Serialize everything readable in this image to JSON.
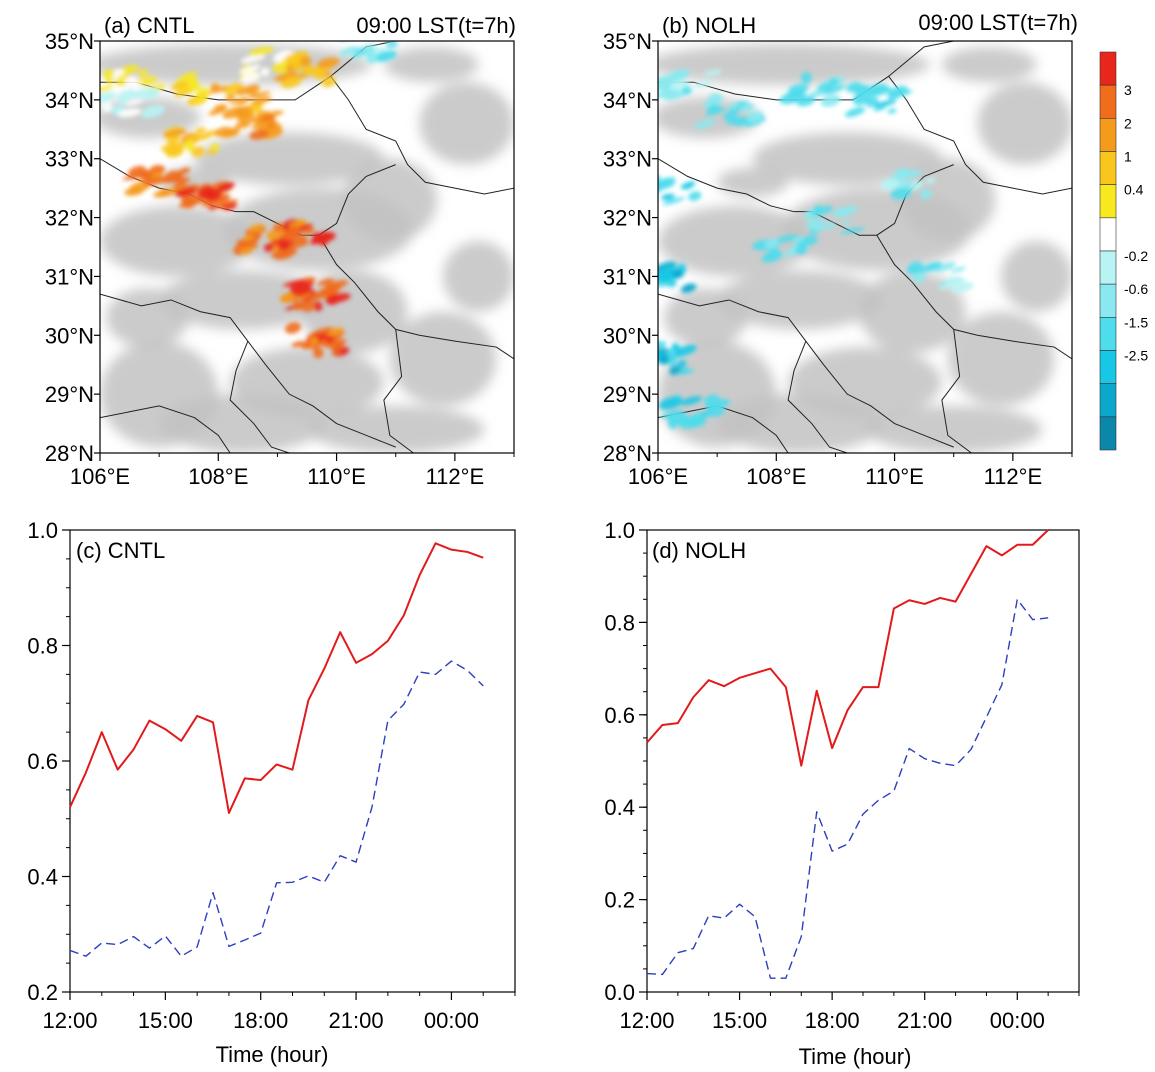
{
  "chart_data": [
    {
      "panel": "a",
      "type": "heatmap",
      "title": "(a) CNTL",
      "subtitle": "09:00 LST(t=7h)",
      "x_ticks": [
        "106°E",
        "108°E",
        "110°E",
        "112°E"
      ],
      "y_ticks": [
        "35°N",
        "34°N",
        "33°N",
        "32°N",
        "31°N",
        "30°N",
        "29°N",
        "28°N"
      ],
      "xlim": [
        106,
        113
      ],
      "ylim": [
        28,
        35
      ],
      "colorbar_ticks": [
        "3",
        "2",
        "1",
        "0.4",
        "-0.2",
        "-0.6",
        "-1.5",
        "-2.5"
      ],
      "colorbar_colors": [
        "#e8261c",
        "#f06d1c",
        "#f59b1c",
        "#f9c61d",
        "#f7e81f",
        "#ffffff",
        "#b8f4f4",
        "#8ae9f0",
        "#4fdcec",
        "#17c8e6",
        "#0aa9cc",
        "#0a87a9"
      ],
      "terrain_color": "#c8c8c8",
      "features": [
        {
          "lon": 106.5,
          "lat": 34.3,
          "value": 0.6
        },
        {
          "lon": 107.3,
          "lat": 34.2,
          "value": 0.8
        },
        {
          "lon": 108.3,
          "lat": 34.0,
          "value": 1.5
        },
        {
          "lon": 108.8,
          "lat": 34.6,
          "value": 0.5
        },
        {
          "lon": 109.5,
          "lat": 34.5,
          "value": 1.2
        },
        {
          "lon": 110.5,
          "lat": 34.9,
          "value": -0.6
        },
        {
          "lon": 107.6,
          "lat": 33.3,
          "value": 1.0
        },
        {
          "lon": 108.5,
          "lat": 33.6,
          "value": 2.0
        },
        {
          "lon": 107.0,
          "lat": 32.6,
          "value": 2.5
        },
        {
          "lon": 107.8,
          "lat": 32.3,
          "value": 3.0
        },
        {
          "lon": 108.8,
          "lat": 31.6,
          "value": 3.0
        },
        {
          "lon": 109.4,
          "lat": 31.7,
          "value": 3.0
        },
        {
          "lon": 109.6,
          "lat": 30.7,
          "value": 3.0
        },
        {
          "lon": 109.7,
          "lat": 29.9,
          "value": 3.0
        },
        {
          "lon": 106.5,
          "lat": 33.9,
          "value": -0.3
        }
      ]
    },
    {
      "panel": "b",
      "type": "heatmap",
      "title": "(b) NOLH",
      "subtitle": "09:00 LST(t=7h)",
      "x_ticks": [
        "106°E",
        "108°E",
        "110°E",
        "112°E"
      ],
      "y_ticks": [
        "35°N",
        "34°N",
        "33°N",
        "32°N",
        "31°N",
        "30°N",
        "29°N",
        "28°N"
      ],
      "xlim": [
        106,
        113
      ],
      "ylim": [
        28,
        35
      ],
      "features": [
        {
          "lon": 106.5,
          "lat": 34.3,
          "value": -0.6
        },
        {
          "lon": 107.2,
          "lat": 33.8,
          "value": -0.8
        },
        {
          "lon": 108.6,
          "lat": 34.2,
          "value": -0.8
        },
        {
          "lon": 109.7,
          "lat": 34.0,
          "value": -1.0
        },
        {
          "lon": 106.2,
          "lat": 32.5,
          "value": -1.0
        },
        {
          "lon": 106.1,
          "lat": 31.0,
          "value": -1.5
        },
        {
          "lon": 106.1,
          "lat": 29.6,
          "value": -1.5
        },
        {
          "lon": 106.6,
          "lat": 28.7,
          "value": -1.0
        },
        {
          "lon": 108.1,
          "lat": 31.5,
          "value": -0.8
        },
        {
          "lon": 109.0,
          "lat": 32.0,
          "value": -0.6
        },
        {
          "lon": 110.3,
          "lat": 32.6,
          "value": -0.6
        },
        {
          "lon": 110.7,
          "lat": 31.0,
          "value": -0.6
        }
      ]
    },
    {
      "panel": "c",
      "type": "line",
      "title": "(c) CNTL",
      "xlabel": "Time (hour)",
      "ylabel": "",
      "x_tick_labels": [
        "12:00",
        "15:00",
        "18:00",
        "21:00",
        "00:00"
      ],
      "x_tick_values": [
        12,
        15,
        18,
        21,
        24
      ],
      "y_tick_labels": [
        "0.2",
        "0.4",
        "0.6",
        "0.8",
        "1.0"
      ],
      "xlim": [
        12,
        26
      ],
      "ylim": [
        0.2,
        1.0
      ],
      "x": [
        12,
        12.5,
        13,
        13.5,
        14,
        14.5,
        15,
        15.5,
        16,
        16.5,
        17,
        17.5,
        18,
        18.5,
        19,
        19.5,
        20,
        20.5,
        21,
        21.5,
        22,
        22.5,
        23,
        23.5,
        24,
        24.5,
        25
      ],
      "series": [
        {
          "style": "solid",
          "color": "#e31a1c",
          "values": [
            0.52,
            0.58,
            0.65,
            0.585,
            0.62,
            0.67,
            0.655,
            0.635,
            0.678,
            0.667,
            0.51,
            0.57,
            0.567,
            0.594,
            0.585,
            0.705,
            0.76,
            0.823,
            0.77,
            0.785,
            0.808,
            0.852,
            0.922,
            0.977,
            0.966,
            0.962,
            0.952
          ]
        },
        {
          "style": "dashed",
          "color": "#2b3fbf",
          "values": [
            0.272,
            0.262,
            0.285,
            0.282,
            0.296,
            0.276,
            0.297,
            0.262,
            0.278,
            0.372,
            0.279,
            0.29,
            0.302,
            0.389,
            0.39,
            0.401,
            0.39,
            0.436,
            0.425,
            0.52,
            0.67,
            0.698,
            0.754,
            0.75,
            0.773,
            0.757,
            0.73
          ]
        }
      ]
    },
    {
      "panel": "d",
      "type": "line",
      "title": "(d) NOLH",
      "xlabel": "Time (hour)",
      "ylabel": "",
      "x_tick_labels": [
        "12:00",
        "15:00",
        "18:00",
        "21:00",
        "00:00"
      ],
      "x_tick_values": [
        12,
        15,
        18,
        21,
        24
      ],
      "y_tick_labels": [
        "0.0",
        "0.2",
        "0.4",
        "0.6",
        "0.8",
        "1.0"
      ],
      "xlim": [
        12,
        26
      ],
      "ylim": [
        0.0,
        1.0
      ],
      "x": [
        12,
        12.5,
        13,
        13.5,
        14,
        14.5,
        15,
        15.5,
        16,
        16.5,
        17,
        17.5,
        18,
        18.5,
        19,
        19.5,
        20,
        20.5,
        21,
        21.5,
        22,
        22.5,
        23,
        23.5,
        24,
        24.5,
        25
      ],
      "series": [
        {
          "style": "solid",
          "color": "#e31a1c",
          "values": [
            0.54,
            0.578,
            0.582,
            0.638,
            0.675,
            0.662,
            0.68,
            0.69,
            0.7,
            0.66,
            0.49,
            0.652,
            0.528,
            0.61,
            0.66,
            0.66,
            0.83,
            0.848,
            0.84,
            0.853,
            0.845,
            0.905,
            0.965,
            0.945,
            0.968,
            0.968,
            1.0
          ]
        },
        {
          "style": "dashed",
          "color": "#2b3fbf",
          "values": [
            0.04,
            0.038,
            0.085,
            0.094,
            0.165,
            0.16,
            0.19,
            0.163,
            0.03,
            0.03,
            0.12,
            0.39,
            0.305,
            0.32,
            0.385,
            0.415,
            0.435,
            0.527,
            0.505,
            0.495,
            0.49,
            0.525,
            0.595,
            0.665,
            0.85,
            0.806,
            0.81
          ]
        }
      ]
    }
  ]
}
